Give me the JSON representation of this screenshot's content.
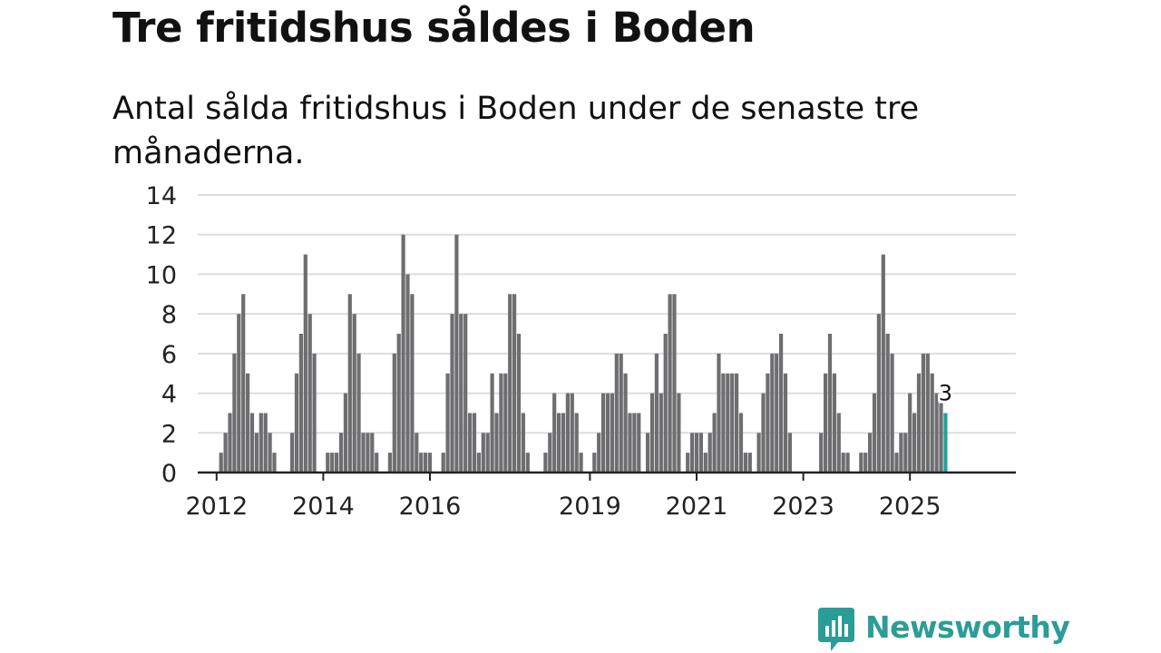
{
  "title": "Tre fritidshus såldes i Boden",
  "subtitle": "Antal sålda fritidshus i Boden under de senaste tre månaderna.",
  "brand": {
    "name": "Newsworthy",
    "color": "#2a9d96",
    "icon": "newsworthy-logo-icon"
  },
  "colors": {
    "bar": "#6e6e70",
    "highlight": "#1fa39a",
    "grid": "#dddddd",
    "axis": "#222222",
    "text": "#222222"
  },
  "chart_data": {
    "type": "bar",
    "title": "Tre fritidshus såldes i Boden",
    "subtitle": "Antal sålda fritidshus i Boden under de senaste tre månaderna.",
    "xlabel": "",
    "ylabel": "",
    "ylim": [
      0,
      14
    ],
    "yticks": [
      0,
      2,
      4,
      6,
      8,
      10,
      12,
      14
    ],
    "grid": true,
    "start_year": 2011,
    "start_month": 11,
    "xticks": [
      {
        "label": "2012",
        "year": 2012,
        "month": 1
      },
      {
        "label": "2014",
        "year": 2014,
        "month": 1
      },
      {
        "label": "2016",
        "year": 2016,
        "month": 1
      },
      {
        "label": "2019",
        "year": 2019,
        "month": 1
      },
      {
        "label": "2021",
        "year": 2021,
        "month": 1
      },
      {
        "label": "2023",
        "year": 2023,
        "month": 1
      },
      {
        "label": "2025",
        "year": 2025,
        "month": 1
      }
    ],
    "values": [
      0,
      0,
      0,
      1,
      2,
      3,
      6,
      8,
      9,
      5,
      3,
      2,
      3,
      3,
      2,
      1,
      0,
      0,
      0,
      2,
      5,
      7,
      11,
      8,
      6,
      0,
      0,
      1,
      1,
      1,
      2,
      4,
      9,
      8,
      6,
      2,
      2,
      2,
      1,
      0,
      0,
      1,
      6,
      7,
      12,
      10,
      9,
      2,
      1,
      1,
      1,
      0,
      0,
      1,
      5,
      8,
      12,
      8,
      8,
      3,
      3,
      1,
      2,
      2,
      5,
      3,
      5,
      5,
      9,
      9,
      7,
      3,
      1,
      0,
      0,
      0,
      1,
      2,
      4,
      3,
      3,
      4,
      4,
      3,
      1,
      0,
      0,
      1,
      2,
      4,
      4,
      4,
      6,
      6,
      5,
      3,
      3,
      3,
      0,
      2,
      4,
      6,
      4,
      7,
      9,
      9,
      4,
      0,
      1,
      2,
      2,
      2,
      1,
      2,
      3,
      6,
      5,
      5,
      5,
      5,
      3,
      1,
      1,
      0,
      2,
      4,
      5,
      6,
      6,
      7,
      5,
      2,
      0,
      0,
      0,
      0,
      0,
      0,
      2,
      5,
      7,
      5,
      3,
      1,
      1,
      0,
      0,
      1,
      1,
      2,
      4,
      8,
      11,
      7,
      6,
      1,
      2,
      2,
      4,
      3,
      5,
      6,
      6,
      5,
      4,
      3.5,
      3
    ],
    "highlight_last": true,
    "last_label": "3"
  }
}
